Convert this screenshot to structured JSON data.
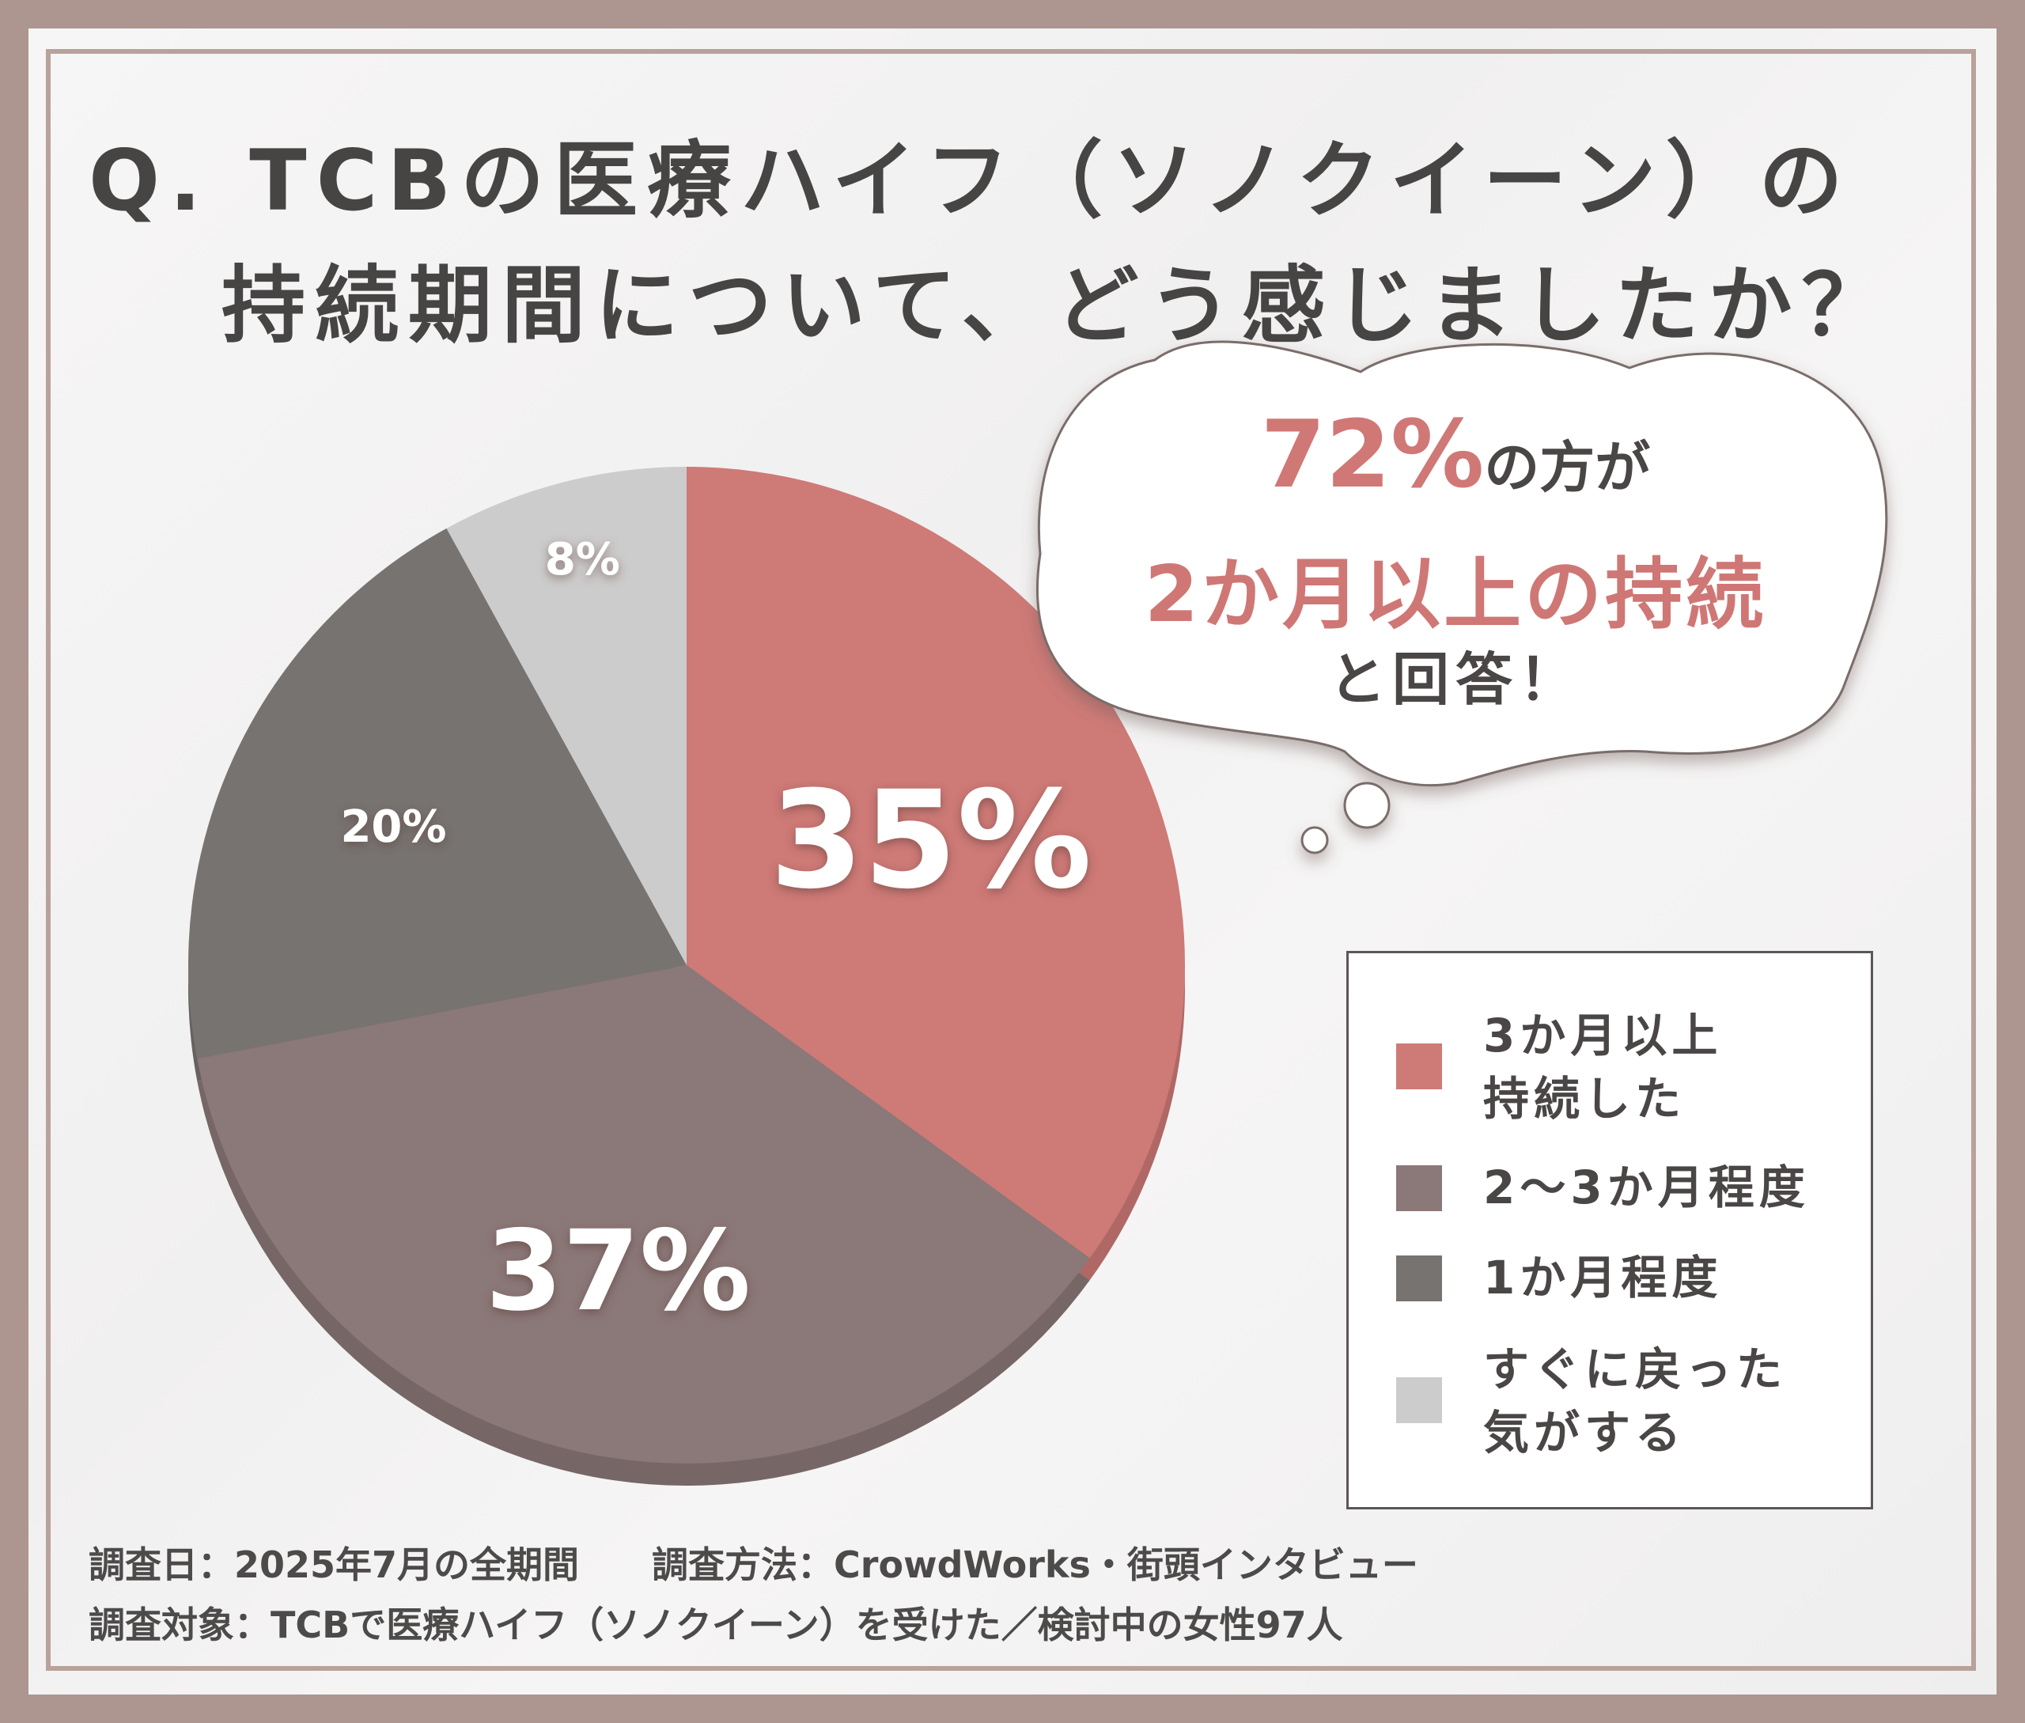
{
  "title": {
    "line1": "Q. TCBの医療ハイフ（ソノクイーン）の",
    "line2": "持続期間について、どう感じましたか？"
  },
  "callout": {
    "percent": "72%",
    "line1_rest": "の方が",
    "line2": "2か月以上の持続",
    "line3": "と回答！"
  },
  "chart_data": {
    "type": "pie",
    "categories": [
      "3か月以上\n持続した",
      "2〜3か月程度",
      "1か月程度",
      "すぐに戻った\n気がする"
    ],
    "values": [
      35,
      37,
      20,
      8
    ],
    "labels": [
      "35%",
      "37%",
      "20%",
      "8%"
    ],
    "colors": [
      "#ce7a77",
      "#8b7878",
      "#777371",
      "#cdcccc"
    ],
    "legend_position": "right"
  },
  "legend": {
    "items": [
      {
        "label": "3か月以上\n持続した",
        "color": "#ce7a77"
      },
      {
        "label": "2〜3か月程度",
        "color": "#8b7878"
      },
      {
        "label": "1か月程度",
        "color": "#777371"
      },
      {
        "label": "すぐに戻った\n気がする",
        "color": "#cdcccc"
      }
    ]
  },
  "footer": {
    "line1": "調査日：2025年7月の全期間　　調査方法：CrowdWorks・街頭インタビュー",
    "line2": "調査対象：TCBで医療ハイフ（ソノクイーン）を受けた／検討中の女性97人"
  }
}
